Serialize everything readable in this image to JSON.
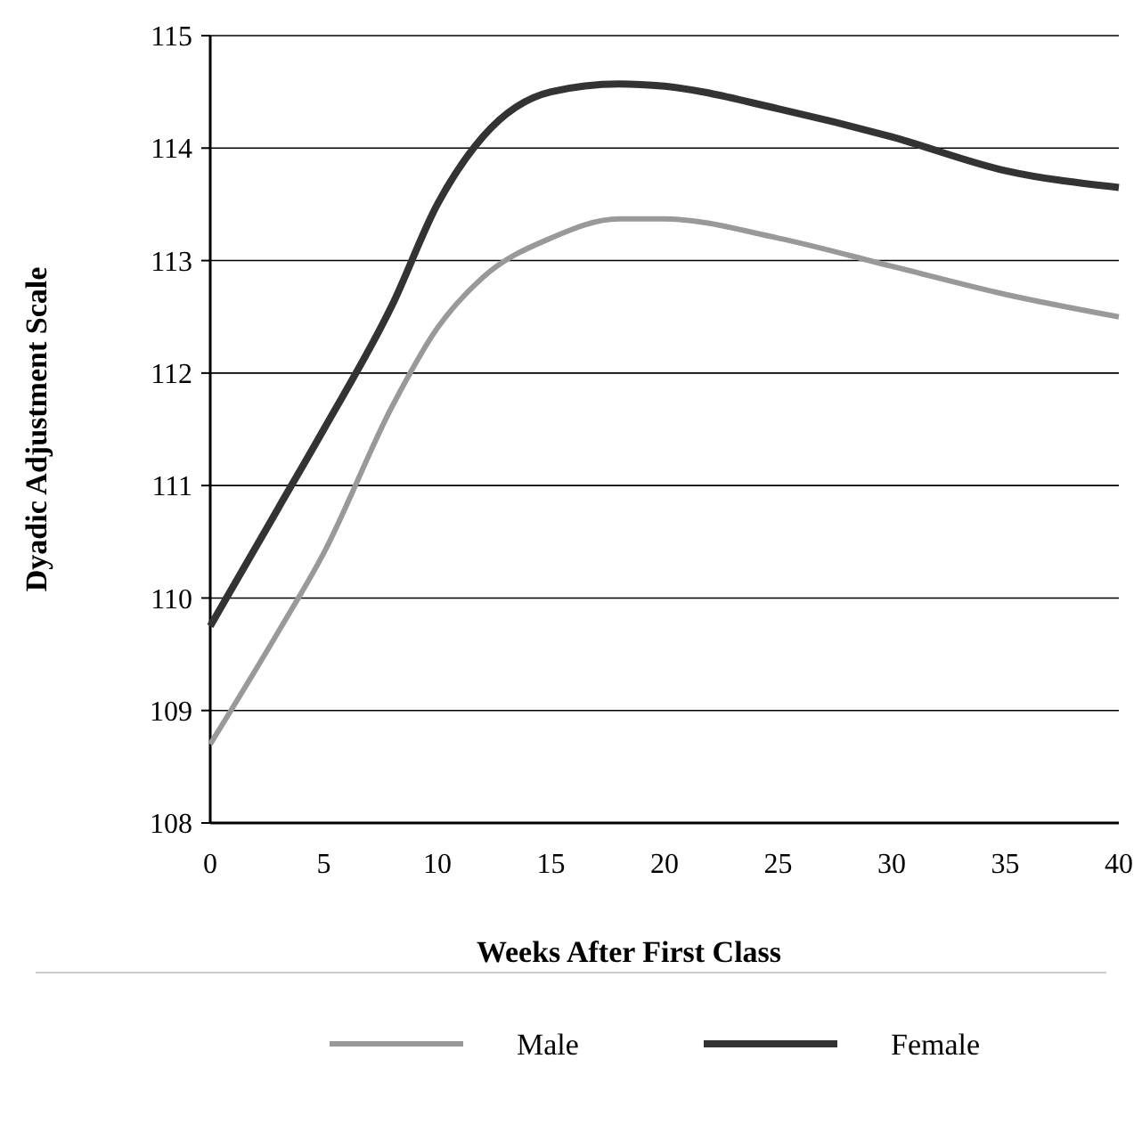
{
  "chart_data": {
    "type": "line",
    "xlabel": "Weeks After First Class",
    "ylabel": "Dyadic Adjustment Scale",
    "xlim": [
      0,
      40
    ],
    "xticks": [
      0,
      5,
      10,
      15,
      20,
      25,
      30,
      35,
      40
    ],
    "ylim": [
      108,
      115
    ],
    "yticks": [
      108,
      109,
      110,
      111,
      112,
      113,
      114,
      115
    ],
    "grid": "y",
    "legend": "bottom",
    "line_style": "solid",
    "marker": "none",
    "series": [
      {
        "name": "Male",
        "color": "#999999",
        "x": [
          0,
          3,
          5,
          8,
          10,
          12,
          15,
          18,
          20,
          25,
          30,
          35,
          40
        ],
        "values": [
          108.7,
          109.7,
          110.4,
          111.7,
          112.4,
          112.85,
          113.2,
          113.37,
          113.37,
          113.2,
          112.95,
          112.7,
          112.5
        ]
      },
      {
        "name": "Female",
        "color": "#333333",
        "x": [
          0,
          3,
          5,
          8,
          10,
          12,
          15,
          18,
          20,
          25,
          30,
          35,
          40
        ],
        "values": [
          109.75,
          110.8,
          111.5,
          112.6,
          113.5,
          114.1,
          114.5,
          114.57,
          114.55,
          114.35,
          114.1,
          113.8,
          113.65
        ]
      }
    ]
  }
}
